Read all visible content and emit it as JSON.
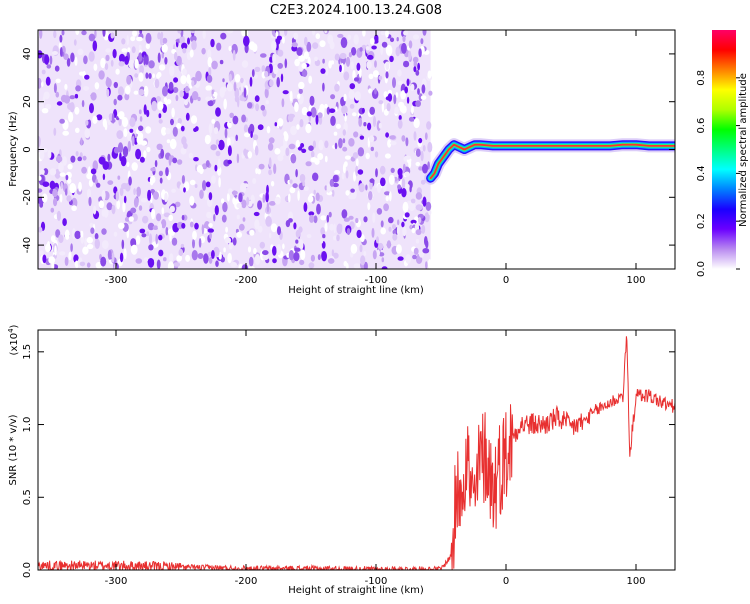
{
  "title": "C2E3.2024.100.13.24.G08",
  "chart_data": [
    {
      "type": "heatmap",
      "xlabel": "Height of straight line (km)",
      "ylabel": "Frequency (Hz)",
      "xlim": [
        -360,
        130
      ],
      "ylim": [
        -50,
        50
      ],
      "xticks": [
        -300,
        -200,
        -100,
        0,
        100
      ],
      "yticks": [
        -40,
        -20,
        0,
        20,
        40
      ],
      "noise_region_x": [
        -360,
        -58
      ],
      "ridge": {
        "x": [
          -58,
          -55,
          -52,
          -48,
          -44,
          -40,
          -36,
          -32,
          -28,
          -24,
          -20,
          -10,
          0,
          20,
          40,
          60,
          80,
          90,
          100,
          110,
          130
        ],
        "y": [
          -12,
          -10,
          -6,
          -3,
          0,
          2,
          1,
          0,
          1,
          2,
          2,
          1.5,
          1.5,
          1.5,
          1.5,
          1.5,
          1.5,
          2,
          2,
          1.5,
          1.5
        ]
      },
      "colorbar": {
        "label": "Normalized spectral amplitude",
        "ticks": [
          0.0,
          0.2,
          0.4,
          0.6,
          0.8
        ],
        "range": [
          0,
          1
        ],
        "colormap": [
          "#ffffff",
          "#b98af0",
          "#6a00ff",
          "#1a00ff",
          "#0080ff",
          "#00ffff",
          "#00ff80",
          "#00ff00",
          "#b0ff00",
          "#ffff00",
          "#ff8000",
          "#ff0000",
          "#ff0066"
        ]
      }
    },
    {
      "type": "line",
      "xlabel": "Height of straight line (km)",
      "ylabel": "SNR (10 * v/v)",
      "exponent_label": "(x10",
      "exponent_power": "4",
      "exponent_close": ")",
      "xlim": [
        -360,
        130
      ],
      "ylim": [
        0,
        1.65
      ],
      "xticks": [
        -300,
        -200,
        -100,
        0,
        100
      ],
      "yticks": [
        0.0,
        0.5,
        1.0,
        1.5
      ],
      "line_color": "#e83030",
      "series": [
        {
          "x": [
            -360,
            -300,
            -250,
            -200,
            -150,
            -100,
            -50,
            -42,
            -38,
            -35,
            -30,
            -25,
            -20,
            -15,
            -10,
            -5,
            0,
            5,
            10,
            20,
            30,
            40,
            50,
            60,
            70,
            80,
            90,
            93,
            95,
            100,
            110,
            120,
            130
          ],
          "values": [
            0.03,
            0.03,
            0.02,
            0.01,
            0.01,
            0.005,
            0.005,
            0.1,
            0.5,
            0.6,
            0.8,
            0.4,
            0.75,
            0.8,
            0.55,
            0.7,
            0.8,
            0.9,
            1.0,
            1.0,
            1.0,
            1.05,
            0.98,
            1.02,
            1.1,
            1.15,
            1.2,
            1.63,
            0.78,
            1.2,
            1.2,
            1.15,
            1.12
          ]
        }
      ]
    }
  ]
}
